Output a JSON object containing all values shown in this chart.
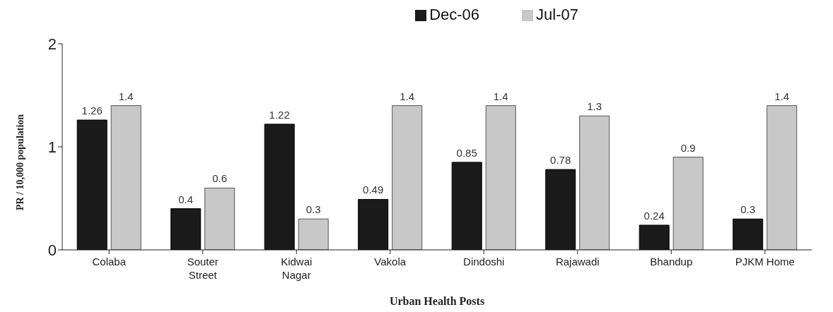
{
  "chart_data": {
    "type": "bar",
    "xlabel": "Urban Health Posts",
    "ylabel": "PR / 10,000 population",
    "categories": [
      "Colaba",
      "Souter\nStreet",
      "Kidwai\nNagar",
      "Vakola",
      "Dindoshi",
      "Rajawadi",
      "Bhandup",
      "PJKM Home"
    ],
    "series": [
      {
        "name": "Dec-06",
        "color": "#1a1a1a",
        "values": [
          1.26,
          0.4,
          1.22,
          0.49,
          0.85,
          0.78,
          0.24,
          0.3
        ]
      },
      {
        "name": "Jul-07",
        "color": "#c8c8c8",
        "values": [
          1.4,
          0.6,
          0.3,
          1.4,
          1.4,
          1.3,
          0.9,
          1.4
        ]
      }
    ],
    "ylim": [
      0,
      2
    ],
    "yticks": [
      0,
      1,
      2
    ],
    "grid": false,
    "legend": "top right",
    "data_labels": true
  }
}
